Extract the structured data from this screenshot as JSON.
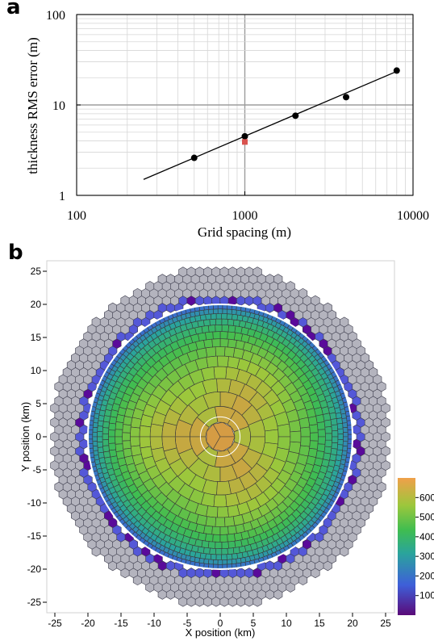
{
  "panels": {
    "a": "a",
    "b": "b"
  },
  "chart_data": [
    {
      "type": "scatter",
      "panel": "a",
      "xlabel": "Grid spacing (m)",
      "ylabel": "thickness RMS error (m)",
      "xscale": "log",
      "yscale": "log",
      "xlim": [
        100,
        10000
      ],
      "ylim": [
        1,
        100
      ],
      "xticks": [
        "100",
        "1000",
        "10000"
      ],
      "yticks": [
        "1",
        "10",
        "100"
      ],
      "grid": true,
      "series": [
        {
          "points": [
            [
              500,
              2.6
            ],
            [
              1000,
              4.5
            ],
            [
              2000,
              7.6
            ],
            [
              4000,
              12.2
            ],
            [
              8000,
              24.0
            ]
          ],
          "color": "#000000"
        },
        {
          "points": [
            [
              1000,
              3.9
            ]
          ],
          "color": "#d9534f"
        }
      ],
      "fit_line": {
        "x": [
          250,
          8000
        ],
        "y": [
          1.5,
          23.5
        ],
        "color": "#000000"
      }
    },
    {
      "type": "heatmap",
      "panel": "b",
      "subtype": "hexagonal Voronoi mesh",
      "xlabel": "X position (km)",
      "ylabel": "Y position (km)",
      "xlim": [
        -26,
        26
      ],
      "ylim": [
        -26.5,
        26.5
      ],
      "xticks": [
        "-25",
        "-20",
        "-15",
        "-10",
        "-5",
        "0",
        "5",
        "10",
        "15",
        "20",
        "25"
      ],
      "yticks": [
        "25",
        "20",
        "15",
        "10",
        "5",
        "0",
        "-5",
        "-10",
        "-15",
        "-20",
        "-25"
      ],
      "domain_radius_km": 25,
      "ice_radius_km": 20,
      "inner_circle_radius_km": 2.5,
      "inactive_color": "#b4b4be",
      "colorbar": {
        "range": [
          0,
          700
        ],
        "ticks": [
          "100",
          "200",
          "300",
          "400",
          "500",
          "600"
        ],
        "stops": [
          "#5a0a78",
          "#3e5fd9",
          "#2aa49c",
          "#3fbd50",
          "#9cc73c",
          "#e09445"
        ]
      }
    }
  ]
}
